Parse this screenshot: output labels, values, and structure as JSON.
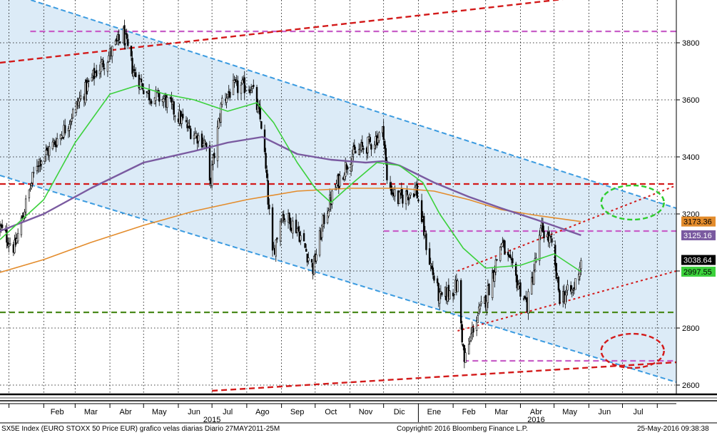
{
  "chart_data": {
    "type": "candlestick",
    "title": "SX5E Index (EURO STOXX 50 Price EUR) grafico velas diarias",
    "period": "Diario 27MAY2011-25M",
    "x_range": [
      "2014-12-24",
      "2016-08-18"
    ],
    "y_range": [
      2570,
      3950
    ],
    "y_ticks": [
      2600,
      2800,
      3000,
      3200,
      3400,
      3600,
      3800
    ],
    "y_tick_labels": [
      "2600",
      "2800",
      "3000",
      "3200",
      "3400",
      "3600",
      "3800"
    ],
    "month_labels": [
      {
        "label": "Feb",
        "date": "2015-02-13"
      },
      {
        "label": "Mar",
        "date": "2015-03-15"
      },
      {
        "label": "Abr",
        "date": "2015-04-15"
      },
      {
        "label": "May",
        "date": "2015-05-15"
      },
      {
        "label": "Jun",
        "date": "2015-06-15"
      },
      {
        "label": "Jul",
        "date": "2015-07-15"
      },
      {
        "label": "Ago",
        "date": "2015-08-15"
      },
      {
        "label": "Sep",
        "date": "2015-09-15"
      },
      {
        "label": "Oct",
        "date": "2015-10-15"
      },
      {
        "label": "Nov",
        "date": "2015-11-15"
      },
      {
        "label": "Dic",
        "date": "2015-12-15"
      },
      {
        "label": "Ene",
        "date": "2016-01-15"
      },
      {
        "label": "Feb",
        "date": "2016-02-15"
      },
      {
        "label": "Mar",
        "date": "2016-03-15"
      },
      {
        "label": "Abr",
        "date": "2016-04-15"
      },
      {
        "label": "May",
        "date": "2016-05-15"
      },
      {
        "label": "Jun",
        "date": "2016-06-15"
      },
      {
        "label": "Jul",
        "date": "2016-07-15"
      }
    ],
    "year_labels": [
      {
        "label": "2015",
        "date": "2015-07-01"
      },
      {
        "label": "2016",
        "date": "2016-04-15"
      }
    ],
    "month_starts": [
      "2015-01-01",
      "2015-02-01",
      "2015-03-01",
      "2015-04-01",
      "2015-05-01",
      "2015-06-01",
      "2015-07-01",
      "2015-08-01",
      "2015-09-01",
      "2015-10-01",
      "2015-11-01",
      "2015-12-01",
      "2016-01-01",
      "2016-02-01",
      "2016-03-01",
      "2016-04-01",
      "2016-05-01",
      "2016-06-01",
      "2016-07-01",
      "2016-08-01"
    ],
    "year_start": "2016-01-01",
    "close_path": [
      [
        "2014-12-24",
        3150
      ],
      [
        "2015-01-06",
        3080
      ],
      [
        "2015-01-15",
        3220
      ],
      [
        "2015-01-26",
        3380
      ],
      [
        "2015-02-05",
        3420
      ],
      [
        "2015-02-20",
        3500
      ],
      [
        "2015-03-05",
        3600
      ],
      [
        "2015-03-20",
        3700
      ],
      [
        "2015-04-01",
        3760
      ],
      [
        "2015-04-13",
        3830
      ],
      [
        "2015-04-22",
        3700
      ],
      [
        "2015-05-05",
        3620
      ],
      [
        "2015-05-20",
        3600
      ],
      [
        "2015-06-10",
        3500
      ],
      [
        "2015-06-25",
        3450
      ],
      [
        "2015-06-29",
        3300
      ],
      [
        "2015-07-10",
        3600
      ],
      [
        "2015-07-20",
        3640
      ],
      [
        "2015-08-05",
        3650
      ],
      [
        "2015-08-15",
        3500
      ],
      [
        "2015-08-24",
        3050
      ],
      [
        "2015-09-01",
        3200
      ],
      [
        "2015-09-15",
        3150
      ],
      [
        "2015-09-29",
        3010
      ],
      [
        "2015-10-10",
        3200
      ],
      [
        "2015-10-20",
        3300
      ],
      [
        "2015-11-01",
        3400
      ],
      [
        "2015-11-20",
        3450
      ],
      [
        "2015-12-01",
        3490
      ],
      [
        "2015-12-04",
        3310
      ],
      [
        "2015-12-14",
        3250
      ],
      [
        "2015-12-30",
        3290
      ],
      [
        "2016-01-10",
        3050
      ],
      [
        "2016-01-20",
        2900
      ],
      [
        "2016-02-05",
        2950
      ],
      [
        "2016-02-11",
        2680
      ],
      [
        "2016-02-20",
        2820
      ],
      [
        "2016-03-01",
        2900
      ],
      [
        "2016-03-15",
        3100
      ],
      [
        "2016-03-25",
        3000
      ],
      [
        "2016-04-07",
        2880
      ],
      [
        "2016-04-20",
        3150
      ],
      [
        "2016-04-28",
        3100
      ],
      [
        "2016-05-06",
        2910
      ],
      [
        "2016-05-18",
        2930
      ],
      [
        "2016-05-25",
        3038.64
      ]
    ],
    "ma50": [
      [
        "2014-12-24",
        3110
      ],
      [
        "2015-02-01",
        3250
      ],
      [
        "2015-03-01",
        3450
      ],
      [
        "2015-04-01",
        3620
      ],
      [
        "2015-04-25",
        3650
      ],
      [
        "2015-05-20",
        3620
      ],
      [
        "2015-06-15",
        3600
      ],
      [
        "2015-07-15",
        3560
      ],
      [
        "2015-08-10",
        3590
      ],
      [
        "2015-08-25",
        3520
      ],
      [
        "2015-09-15",
        3380
      ],
      [
        "2015-10-01",
        3290
      ],
      [
        "2015-10-15",
        3240
      ],
      [
        "2015-11-01",
        3300
      ],
      [
        "2015-11-25",
        3380
      ],
      [
        "2015-12-15",
        3370
      ],
      [
        "2016-01-05",
        3310
      ],
      [
        "2016-01-20",
        3200
      ],
      [
        "2016-02-10",
        3080
      ],
      [
        "2016-03-01",
        3010
      ],
      [
        "2016-04-01",
        3020
      ],
      [
        "2016-05-01",
        3060
      ],
      [
        "2016-05-25",
        2997.55
      ]
    ],
    "ma200": [
      [
        "2014-12-24",
        3140
      ],
      [
        "2015-02-01",
        3200
      ],
      [
        "2015-03-15",
        3290
      ],
      [
        "2015-05-01",
        3380
      ],
      [
        "2015-06-15",
        3420
      ],
      [
        "2015-07-15",
        3450
      ],
      [
        "2015-08-15",
        3470
      ],
      [
        "2015-09-15",
        3410
      ],
      [
        "2015-10-15",
        3390
      ],
      [
        "2015-11-15",
        3380
      ],
      [
        "2015-12-01",
        3385
      ],
      [
        "2015-12-15",
        3370
      ],
      [
        "2016-01-15",
        3310
      ],
      [
        "2016-02-15",
        3260
      ],
      [
        "2016-03-15",
        3220
      ],
      [
        "2016-04-15",
        3180
      ],
      [
        "2016-05-25",
        3125.16
      ]
    ],
    "ma_long": [
      [
        "2014-12-24",
        2995
      ],
      [
        "2015-02-01",
        3040
      ],
      [
        "2015-03-15",
        3100
      ],
      [
        "2015-05-01",
        3160
      ],
      [
        "2015-06-15",
        3210
      ],
      [
        "2015-08-01",
        3250
      ],
      [
        "2015-09-15",
        3280
      ],
      [
        "2015-11-01",
        3290
      ],
      [
        "2015-12-15",
        3290
      ],
      [
        "2016-01-15",
        3280
      ],
      [
        "2016-02-15",
        3250
      ],
      [
        "2016-03-15",
        3215
      ],
      [
        "2016-04-15",
        3195
      ],
      [
        "2016-05-25",
        3173.36
      ]
    ],
    "channel_upper": [
      [
        "2014-12-24",
        3985
      ],
      [
        "2016-08-18",
        3220
      ]
    ],
    "channel_lower": [
      [
        "2014-12-24",
        3335
      ],
      [
        "2016-08-18",
        2610
      ]
    ],
    "trend_red_top": [
      [
        "2014-12-24",
        3730
      ],
      [
        "2016-05-25",
        3960
      ]
    ],
    "trend_red_bottom": [
      [
        "2015-07-01",
        2580
      ],
      [
        "2016-08-18",
        2680
      ]
    ],
    "trend_red_dotted_upper": [
      [
        "2016-02-05",
        3000
      ],
      [
        "2016-08-18",
        3300
      ]
    ],
    "trend_red_dotted_lower": [
      [
        "2016-02-05",
        2790
      ],
      [
        "2016-08-18",
        3000
      ]
    ],
    "hlines": [
      {
        "value": 3840,
        "color": "#c85ec8",
        "dash": "dashed",
        "from": "2015-01-20",
        "to": "2016-08-18"
      },
      {
        "value": 3305,
        "color": "#d31a1a",
        "dash": "dashed",
        "from": "2014-12-24",
        "to": "2016-08-18"
      },
      {
        "value": 3140,
        "color": "#c85ec8",
        "dash": "dashed",
        "from": "2015-12-01",
        "to": "2016-08-18"
      },
      {
        "value": 2855,
        "color": "#4a8a1c",
        "dash": "dashed",
        "from": "2014-12-24",
        "to": "2016-08-18"
      },
      {
        "value": 2685,
        "color": "#c85ec8",
        "dash": "dashed",
        "from": "2016-02-10",
        "to": "2016-08-18"
      }
    ],
    "ellipses": [
      {
        "cx_date": "2016-07-10",
        "cy": 3240,
        "rx_days": 28,
        "ry": 60,
        "color": "#2ecc2e"
      },
      {
        "cx_date": "2016-07-10",
        "cy": 2720,
        "rx_days": 28,
        "ry": 60,
        "color": "#d31a1a"
      }
    ],
    "value_labels": [
      {
        "text": "3173.36",
        "value": 3173.36,
        "bg": "#e38c2c",
        "fg": "#000000"
      },
      {
        "text": "3125.16",
        "value": 3125.16,
        "bg": "#7a5aa0",
        "fg": "#ffffff"
      },
      {
        "text": "3038.64",
        "value": 3038.64,
        "bg": "#000000",
        "fg": "#ffffff"
      },
      {
        "text": "2997.55",
        "value": 2997.55,
        "bg": "#3cd13c",
        "fg": "#000000"
      }
    ],
    "colors": {
      "channel_fill": "#dcebf7",
      "channel_line": "#3b9be0",
      "ma50": "#3cd13c",
      "ma200": "#7a5aa0",
      "ma_long": "#e38c2c",
      "candle": "#000000",
      "grid": "#000000",
      "red": "#d31a1a"
    }
  },
  "footer": {
    "title": "SX5E Index (EURO STOXX 50 Price EUR) grafico velas diarias  Diario 27MAY2011-25M",
    "copyright": "Copyright© 2016 Bloomberg Finance L.P.",
    "timestamp": "25-May-2016 09:38:38"
  }
}
